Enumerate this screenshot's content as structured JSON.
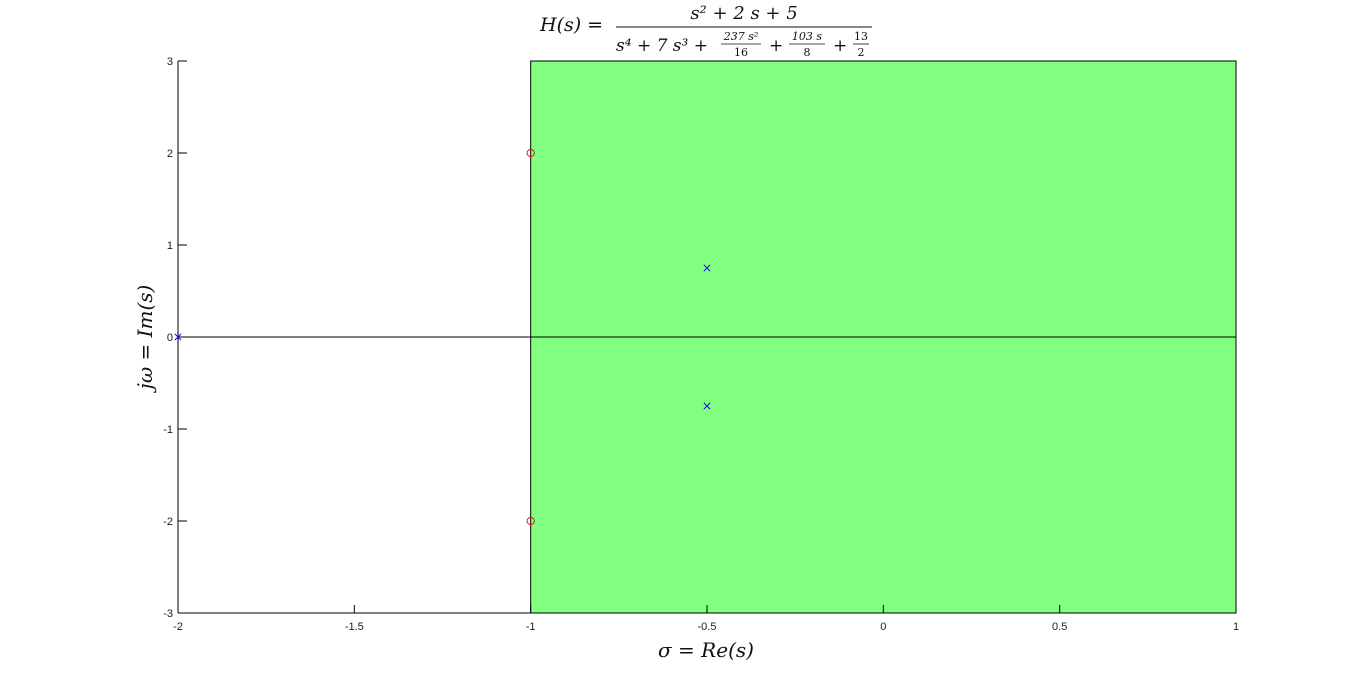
{
  "chart_data": {
    "type": "scatter",
    "title": {
      "lhs": "H(s) =",
      "numerator": "s² + 2 s + 5",
      "denominator": {
        "t1": "s⁴ + 7 s³ +",
        "f1_num": "237 s²",
        "f1_den": "16",
        "plus1": "+",
        "f2_num": "103 s",
        "f2_den": "8",
        "plus2": "+",
        "f3_num": "13",
        "f3_den": "2"
      }
    },
    "xlabel": "σ = Re(s)",
    "ylabel": "jω = Im(s)",
    "xlim": [
      -2,
      1
    ],
    "ylim": [
      -3,
      3
    ],
    "xticks": [
      -2,
      -1.5,
      -1,
      -0.5,
      0,
      0.5,
      1
    ],
    "xtick_labels": [
      "-2",
      "-1.5",
      "-1",
      "-0.5",
      "0",
      "0.5",
      "1"
    ],
    "yticks": [
      -3,
      -2,
      -1,
      0,
      1,
      2,
      3
    ],
    "ytick_labels": [
      "-3",
      "-2",
      "-1",
      "0",
      "1",
      "2",
      "3"
    ],
    "region_of_convergence": {
      "x_from": -1,
      "x_to": 1,
      "y_from": -3,
      "y_to": 3,
      "color": "#80ff80"
    },
    "zeros": [
      {
        "re": -1,
        "im": 2
      },
      {
        "re": -1,
        "im": -2
      }
    ],
    "poles": [
      {
        "re": -2,
        "im": 0
      },
      {
        "re": -0.5,
        "im": 0.75
      },
      {
        "re": -0.5,
        "im": -0.75
      }
    ],
    "zero_color": "#ff0000",
    "pole_color": "#0000ff",
    "axis_color": "#000000"
  }
}
